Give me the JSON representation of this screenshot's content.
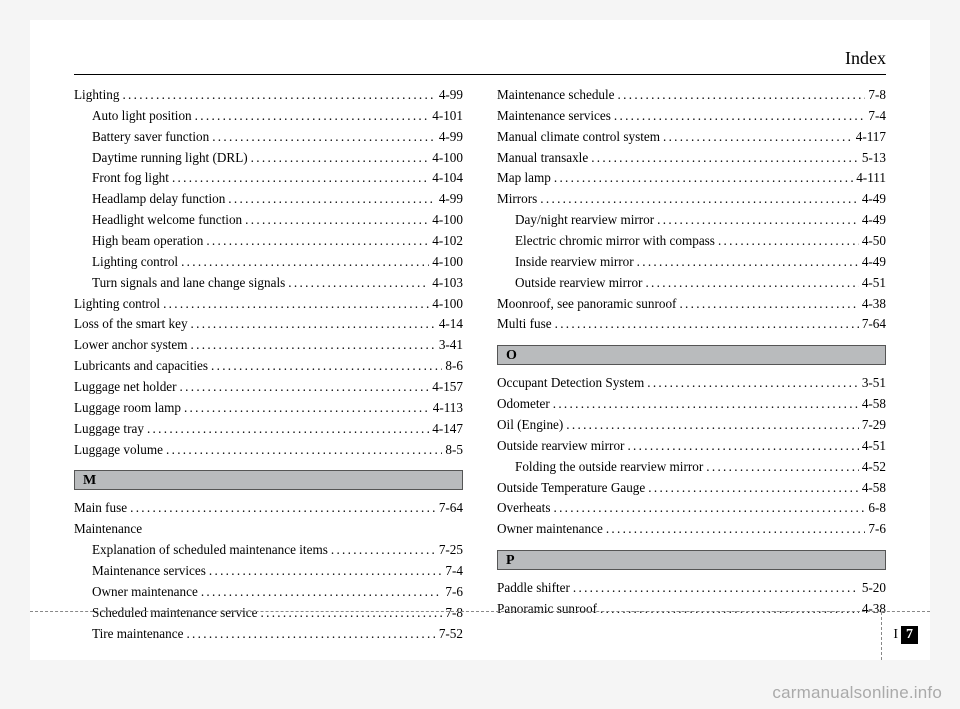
{
  "header": "Index",
  "page_number_section": "I",
  "page_number": "7",
  "watermark": "carmanualsonline.info",
  "left": {
    "entries_top": [
      {
        "label": "Lighting",
        "page": "4-99",
        "indent": false
      },
      {
        "label": "Auto light position",
        "page": "4-101",
        "indent": true
      },
      {
        "label": "Battery saver function",
        "page": "4-99",
        "indent": true
      },
      {
        "label": "Daytime running light (DRL)",
        "page": "4-100",
        "indent": true
      },
      {
        "label": "Front fog light",
        "page": "4-104",
        "indent": true
      },
      {
        "label": "Headlamp delay function",
        "page": "4-99",
        "indent": true
      },
      {
        "label": "Headlight welcome function",
        "page": "4-100",
        "indent": true
      },
      {
        "label": "High beam operation",
        "page": "4-102",
        "indent": true
      },
      {
        "label": "Lighting control",
        "page": "4-100",
        "indent": true
      },
      {
        "label": "Turn signals and lane change signals",
        "page": "4-103",
        "indent": true
      },
      {
        "label": "Lighting control",
        "page": "4-100",
        "indent": false
      },
      {
        "label": "Loss of the smart key",
        "page": "4-14",
        "indent": false
      },
      {
        "label": "Lower anchor system",
        "page": "3-41",
        "indent": false
      },
      {
        "label": "Lubricants and capacities",
        "page": "8-6",
        "indent": false
      },
      {
        "label": "Luggage net holder",
        "page": "4-157",
        "indent": false
      },
      {
        "label": "Luggage room lamp",
        "page": "4-113",
        "indent": false
      },
      {
        "label": "Luggage tray",
        "page": "4-147",
        "indent": false
      },
      {
        "label": "Luggage volume",
        "page": "8-5",
        "indent": false
      }
    ],
    "section_m": "M",
    "entries_m": [
      {
        "label": "Main fuse",
        "page": "7-64",
        "indent": false
      },
      {
        "label": "Maintenance",
        "page": "",
        "indent": false,
        "nodots": true
      },
      {
        "label": "Explanation of scheduled maintenance items",
        "page": "7-25",
        "indent": true
      },
      {
        "label": "Maintenance services",
        "page": "7-4",
        "indent": true
      },
      {
        "label": "Owner maintenance",
        "page": "7-6",
        "indent": true
      },
      {
        "label": "Scheduled maintenance service",
        "page": "7-8",
        "indent": true
      },
      {
        "label": "Tire maintenance",
        "page": "7-52",
        "indent": true
      }
    ]
  },
  "right": {
    "entries_top": [
      {
        "label": "Maintenance schedule",
        "page": "7-8",
        "indent": false
      },
      {
        "label": "Maintenance services",
        "page": "7-4",
        "indent": false
      },
      {
        "label": "Manual climate control system",
        "page": "4-117",
        "indent": false
      },
      {
        "label": "Manual transaxle",
        "page": "5-13",
        "indent": false
      },
      {
        "label": "Map lamp",
        "page": "4-111",
        "indent": false
      },
      {
        "label": "Mirrors",
        "page": "4-49",
        "indent": false
      },
      {
        "label": "Day/night rearview mirror",
        "page": "4-49",
        "indent": true
      },
      {
        "label": "Electric chromic mirror with compass",
        "page": "4-50",
        "indent": true
      },
      {
        "label": "Inside rearview mirror",
        "page": "4-49",
        "indent": true
      },
      {
        "label": "Outside rearview mirror",
        "page": "4-51",
        "indent": true
      },
      {
        "label": "Moonroof, see panoramic sunroof",
        "page": "4-38",
        "indent": false
      },
      {
        "label": "Multi fuse",
        "page": "7-64",
        "indent": false
      }
    ],
    "section_o": "O",
    "entries_o": [
      {
        "label": "Occupant Detection System",
        "page": "3-51",
        "indent": false
      },
      {
        "label": "Odometer",
        "page": "4-58",
        "indent": false
      },
      {
        "label": "Oil (Engine)",
        "page": "7-29",
        "indent": false
      },
      {
        "label": "Outside rearview mirror",
        "page": "4-51",
        "indent": false
      },
      {
        "label": "Folding the outside rearview mirror",
        "page": "4-52",
        "indent": true
      },
      {
        "label": "Outside Temperature Gauge",
        "page": "4-58",
        "indent": false
      },
      {
        "label": "Overheats",
        "page": "6-8",
        "indent": false
      },
      {
        "label": "Owner maintenance",
        "page": "7-6",
        "indent": false
      }
    ],
    "section_p": "P",
    "entries_p": [
      {
        "label": "Paddle shifter",
        "page": "5-20",
        "indent": false
      },
      {
        "label": "Panoramic sunroof",
        "page": "4-38",
        "indent": false
      }
    ]
  }
}
